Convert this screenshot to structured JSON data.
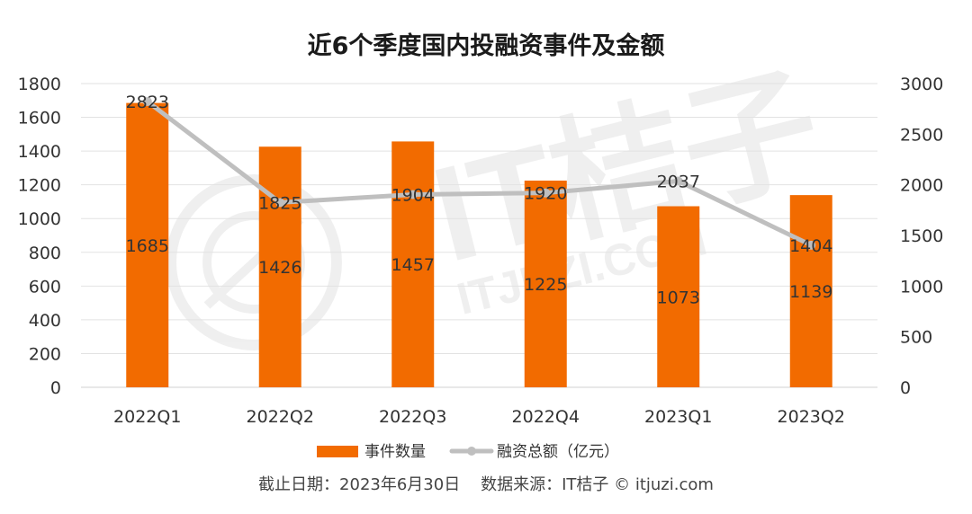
{
  "chart_data": {
    "type": "bar+line",
    "title": "近6个季度国内投融资事件及金额",
    "categories": [
      "2022Q1",
      "2022Q2",
      "2022Q3",
      "2022Q4",
      "2023Q1",
      "2023Q2"
    ],
    "series": [
      {
        "name": "事件数量",
        "type": "bar",
        "axis": "left",
        "color": "#F26B00",
        "values": [
          1685,
          1426,
          1457,
          1225,
          1073,
          1139
        ],
        "labels": [
          "1685",
          "1426",
          "1457",
          "1225",
          "1073",
          "1139"
        ]
      },
      {
        "name": "融资总额（亿元）",
        "type": "line",
        "axis": "right",
        "color": "#BFBFBF",
        "values": [
          2823,
          1825,
          1904,
          1920,
          2037,
          1404
        ],
        "labels": [
          "2823",
          "1825",
          "1904",
          "1920",
          "2037",
          "1404"
        ]
      }
    ],
    "y_left": {
      "min": 0,
      "max": 1800,
      "ticks": [
        "0",
        "200",
        "400",
        "600",
        "800",
        "1000",
        "1200",
        "1400",
        "1600",
        "1800"
      ]
    },
    "y_right": {
      "min": 0,
      "max": 3000,
      "ticks": [
        "0",
        "500",
        "1000",
        "1500",
        "2000",
        "2500",
        "3000"
      ]
    },
    "grid": true,
    "legend_position": "bottom"
  },
  "footer": {
    "note": "截止日期：2023年6月30日    数据来源：IT桔子 © itjuzi.com"
  },
  "watermark": {
    "text": "IT桔子",
    "subtext": "ITJUZI.COM"
  }
}
